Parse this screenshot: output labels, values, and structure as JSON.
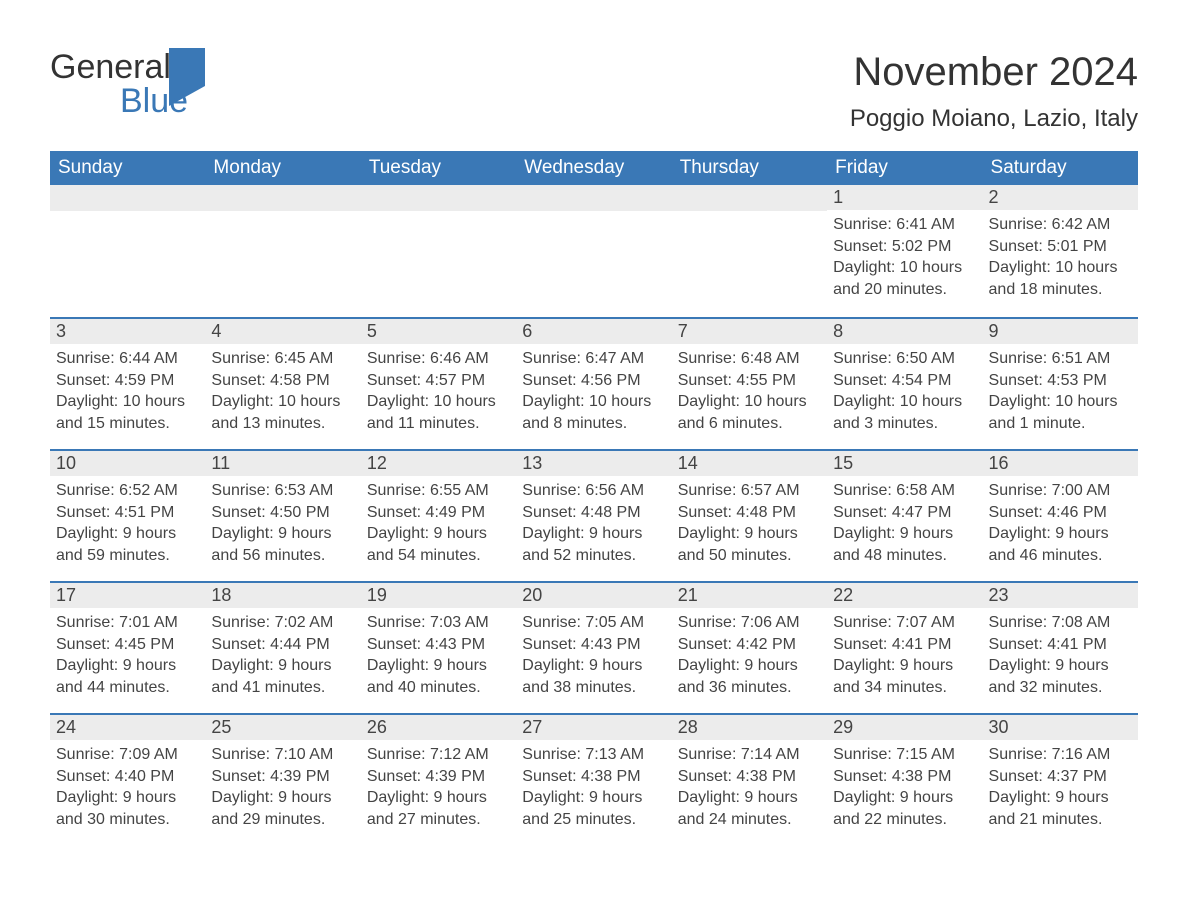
{
  "logo": {
    "general": "General",
    "blue": "Blue"
  },
  "header": {
    "month_title": "November 2024",
    "location": "Poggio Moiano, Lazio, Italy"
  },
  "colors": {
    "header_bg": "#3a78b6",
    "header_fg": "#ffffff",
    "daynum_bg": "#ececec",
    "rule": "#3a78b6",
    "text": "#444444",
    "page_bg": "#ffffff"
  },
  "typography": {
    "month_title_fontsize": 40,
    "location_fontsize": 24,
    "weekday_fontsize": 19,
    "daynum_fontsize": 18,
    "detail_fontsize": 16,
    "font_family": "Arial"
  },
  "weekdays": [
    "Sunday",
    "Monday",
    "Tuesday",
    "Wednesday",
    "Thursday",
    "Friday",
    "Saturday"
  ],
  "weeks": [
    [
      null,
      null,
      null,
      null,
      null,
      {
        "day": "1",
        "sunrise": "Sunrise: 6:41 AM",
        "sunset": "Sunset: 5:02 PM",
        "daylight1": "Daylight: 10 hours",
        "daylight2": "and 20 minutes."
      },
      {
        "day": "2",
        "sunrise": "Sunrise: 6:42 AM",
        "sunset": "Sunset: 5:01 PM",
        "daylight1": "Daylight: 10 hours",
        "daylight2": "and 18 minutes."
      }
    ],
    [
      {
        "day": "3",
        "sunrise": "Sunrise: 6:44 AM",
        "sunset": "Sunset: 4:59 PM",
        "daylight1": "Daylight: 10 hours",
        "daylight2": "and 15 minutes."
      },
      {
        "day": "4",
        "sunrise": "Sunrise: 6:45 AM",
        "sunset": "Sunset: 4:58 PM",
        "daylight1": "Daylight: 10 hours",
        "daylight2": "and 13 minutes."
      },
      {
        "day": "5",
        "sunrise": "Sunrise: 6:46 AM",
        "sunset": "Sunset: 4:57 PM",
        "daylight1": "Daylight: 10 hours",
        "daylight2": "and 11 minutes."
      },
      {
        "day": "6",
        "sunrise": "Sunrise: 6:47 AM",
        "sunset": "Sunset: 4:56 PM",
        "daylight1": "Daylight: 10 hours",
        "daylight2": "and 8 minutes."
      },
      {
        "day": "7",
        "sunrise": "Sunrise: 6:48 AM",
        "sunset": "Sunset: 4:55 PM",
        "daylight1": "Daylight: 10 hours",
        "daylight2": "and 6 minutes."
      },
      {
        "day": "8",
        "sunrise": "Sunrise: 6:50 AM",
        "sunset": "Sunset: 4:54 PM",
        "daylight1": "Daylight: 10 hours",
        "daylight2": "and 3 minutes."
      },
      {
        "day": "9",
        "sunrise": "Sunrise: 6:51 AM",
        "sunset": "Sunset: 4:53 PM",
        "daylight1": "Daylight: 10 hours",
        "daylight2": "and 1 minute."
      }
    ],
    [
      {
        "day": "10",
        "sunrise": "Sunrise: 6:52 AM",
        "sunset": "Sunset: 4:51 PM",
        "daylight1": "Daylight: 9 hours",
        "daylight2": "and 59 minutes."
      },
      {
        "day": "11",
        "sunrise": "Sunrise: 6:53 AM",
        "sunset": "Sunset: 4:50 PM",
        "daylight1": "Daylight: 9 hours",
        "daylight2": "and 56 minutes."
      },
      {
        "day": "12",
        "sunrise": "Sunrise: 6:55 AM",
        "sunset": "Sunset: 4:49 PM",
        "daylight1": "Daylight: 9 hours",
        "daylight2": "and 54 minutes."
      },
      {
        "day": "13",
        "sunrise": "Sunrise: 6:56 AM",
        "sunset": "Sunset: 4:48 PM",
        "daylight1": "Daylight: 9 hours",
        "daylight2": "and 52 minutes."
      },
      {
        "day": "14",
        "sunrise": "Sunrise: 6:57 AM",
        "sunset": "Sunset: 4:48 PM",
        "daylight1": "Daylight: 9 hours",
        "daylight2": "and 50 minutes."
      },
      {
        "day": "15",
        "sunrise": "Sunrise: 6:58 AM",
        "sunset": "Sunset: 4:47 PM",
        "daylight1": "Daylight: 9 hours",
        "daylight2": "and 48 minutes."
      },
      {
        "day": "16",
        "sunrise": "Sunrise: 7:00 AM",
        "sunset": "Sunset: 4:46 PM",
        "daylight1": "Daylight: 9 hours",
        "daylight2": "and 46 minutes."
      }
    ],
    [
      {
        "day": "17",
        "sunrise": "Sunrise: 7:01 AM",
        "sunset": "Sunset: 4:45 PM",
        "daylight1": "Daylight: 9 hours",
        "daylight2": "and 44 minutes."
      },
      {
        "day": "18",
        "sunrise": "Sunrise: 7:02 AM",
        "sunset": "Sunset: 4:44 PM",
        "daylight1": "Daylight: 9 hours",
        "daylight2": "and 41 minutes."
      },
      {
        "day": "19",
        "sunrise": "Sunrise: 7:03 AM",
        "sunset": "Sunset: 4:43 PM",
        "daylight1": "Daylight: 9 hours",
        "daylight2": "and 40 minutes."
      },
      {
        "day": "20",
        "sunrise": "Sunrise: 7:05 AM",
        "sunset": "Sunset: 4:43 PM",
        "daylight1": "Daylight: 9 hours",
        "daylight2": "and 38 minutes."
      },
      {
        "day": "21",
        "sunrise": "Sunrise: 7:06 AM",
        "sunset": "Sunset: 4:42 PM",
        "daylight1": "Daylight: 9 hours",
        "daylight2": "and 36 minutes."
      },
      {
        "day": "22",
        "sunrise": "Sunrise: 7:07 AM",
        "sunset": "Sunset: 4:41 PM",
        "daylight1": "Daylight: 9 hours",
        "daylight2": "and 34 minutes."
      },
      {
        "day": "23",
        "sunrise": "Sunrise: 7:08 AM",
        "sunset": "Sunset: 4:41 PM",
        "daylight1": "Daylight: 9 hours",
        "daylight2": "and 32 minutes."
      }
    ],
    [
      {
        "day": "24",
        "sunrise": "Sunrise: 7:09 AM",
        "sunset": "Sunset: 4:40 PM",
        "daylight1": "Daylight: 9 hours",
        "daylight2": "and 30 minutes."
      },
      {
        "day": "25",
        "sunrise": "Sunrise: 7:10 AM",
        "sunset": "Sunset: 4:39 PM",
        "daylight1": "Daylight: 9 hours",
        "daylight2": "and 29 minutes."
      },
      {
        "day": "26",
        "sunrise": "Sunrise: 7:12 AM",
        "sunset": "Sunset: 4:39 PM",
        "daylight1": "Daylight: 9 hours",
        "daylight2": "and 27 minutes."
      },
      {
        "day": "27",
        "sunrise": "Sunrise: 7:13 AM",
        "sunset": "Sunset: 4:38 PM",
        "daylight1": "Daylight: 9 hours",
        "daylight2": "and 25 minutes."
      },
      {
        "day": "28",
        "sunrise": "Sunrise: 7:14 AM",
        "sunset": "Sunset: 4:38 PM",
        "daylight1": "Daylight: 9 hours",
        "daylight2": "and 24 minutes."
      },
      {
        "day": "29",
        "sunrise": "Sunrise: 7:15 AM",
        "sunset": "Sunset: 4:38 PM",
        "daylight1": "Daylight: 9 hours",
        "daylight2": "and 22 minutes."
      },
      {
        "day": "30",
        "sunrise": "Sunrise: 7:16 AM",
        "sunset": "Sunset: 4:37 PM",
        "daylight1": "Daylight: 9 hours",
        "daylight2": "and 21 minutes."
      }
    ]
  ]
}
